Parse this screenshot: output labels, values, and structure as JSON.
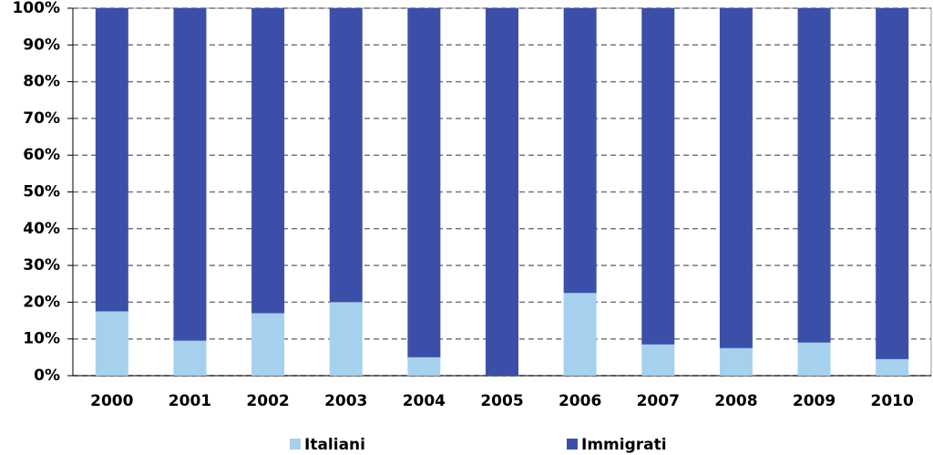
{
  "chart_data": {
    "type": "stacked_bar",
    "categories": [
      "2000",
      "2001",
      "2002",
      "2003",
      "2004",
      "2005",
      "2006",
      "2007",
      "2008",
      "2009",
      "2010"
    ],
    "series": [
      {
        "name": "Italiani",
        "color": "#a6d1ee",
        "values": [
          17.5,
          9.5,
          17,
          20,
          5,
          0,
          22.5,
          8.5,
          7.5,
          9,
          4.5
        ]
      },
      {
        "name": "Immigrati",
        "color": "#3c4fa8",
        "values": [
          82.5,
          90.5,
          83,
          80,
          95,
          100,
          77.5,
          91.5,
          92.5,
          91,
          95.5
        ]
      }
    ],
    "ylim": [
      0,
      100
    ],
    "yticks": [
      {
        "value": 0,
        "label": "0%"
      },
      {
        "value": 10,
        "label": "10%"
      },
      {
        "value": 20,
        "label": "20%"
      },
      {
        "value": 30,
        "label": "30%"
      },
      {
        "value": 40,
        "label": "40%"
      },
      {
        "value": 50,
        "label": "50%"
      },
      {
        "value": 60,
        "label": "60%"
      },
      {
        "value": 70,
        "label": "70%"
      },
      {
        "value": 80,
        "label": "80%"
      },
      {
        "value": 90,
        "label": "90%"
      },
      {
        "value": 100,
        "label": "100%"
      }
    ],
    "grid": true,
    "legend": "bottom"
  }
}
